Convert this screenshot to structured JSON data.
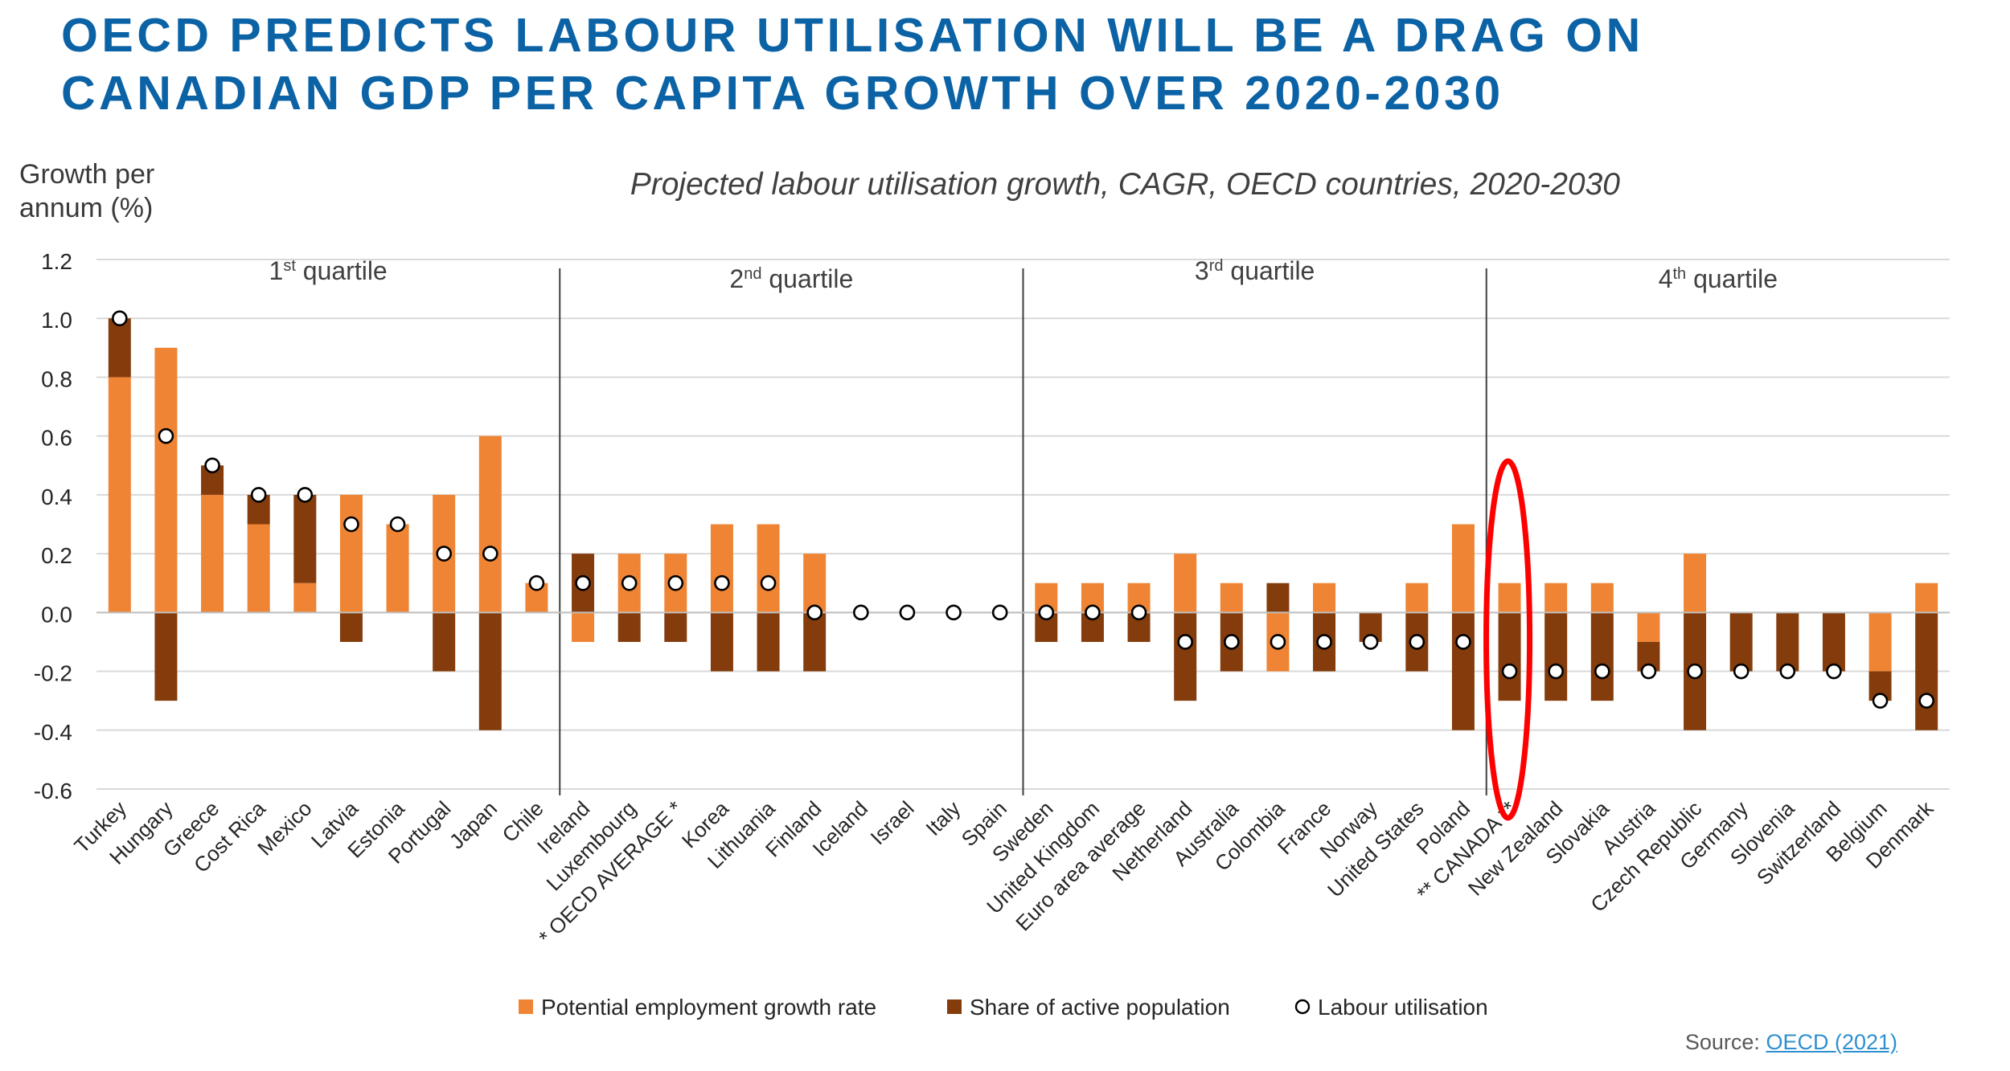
{
  "headline": {
    "line1": "OECD PREDICTS LABOUR UTILISATION WILL BE A DRAG ON",
    "line2": "CANADIAN GDP PER CAPITA GROWTH OVER 2020-2030"
  },
  "colors": {
    "headline": "#0b63a6",
    "potential_employment": "#ee8434",
    "share_active_population": "#843c0c",
    "labour_utilisation_marker": "#ffffff",
    "highlight_ellipse": "#ff0000",
    "gridline": "#d9d9d9",
    "link": "#2f8fcf"
  },
  "source": {
    "prefix": "Source: ",
    "link_text": "OECD (2021)"
  },
  "chart_data": {
    "type": "bar",
    "stacked": true,
    "title": "Projected labour utilisation growth, CAGR, OECD countries, 2020-2030",
    "ylabel_line1": "Growth per",
    "ylabel_line2": "annum (%)",
    "xlabel": "",
    "ylim": [
      -0.6,
      1.2
    ],
    "yticks": [
      "1.2",
      "1.0",
      "0.8",
      "0.6",
      "0.4",
      "0.2",
      "0.0",
      "-0.2",
      "-0.4",
      "-0.6"
    ],
    "grid": "horizontal",
    "categories": [
      "Turkey",
      "Hungary",
      "Greece",
      "Cost Rica",
      "Mexico",
      "Latvia",
      "Estonia",
      "Portugal",
      "Japan",
      "Chile",
      "Ireland",
      "Luxembourg",
      "* OECD AVERAGE *",
      "Korea",
      "Lithuania",
      "Finland",
      "Iceland",
      "Israel",
      "Italy",
      "Spain",
      "Sweden",
      "United Kingdom",
      "Euro area average",
      "Netherland",
      "Australia",
      "Colombia",
      "France",
      "Norway",
      "United States",
      "Poland",
      "** CANADA **",
      "New Zealand",
      "Slovakia",
      "Austria",
      "Czech Republic",
      "Germany",
      "Slovenia",
      "Switzerland",
      "Belgium",
      "Denmark"
    ],
    "series": [
      {
        "name": "Potential employment growth rate",
        "kind": "bar",
        "values": [
          0.8,
          0.9,
          0.4,
          0.3,
          0.1,
          0.4,
          0.3,
          0.4,
          0.6,
          0.1,
          -0.1,
          0.2,
          0.2,
          0.3,
          0.3,
          0.2,
          0.0,
          0.0,
          0.0,
          0.0,
          0.1,
          0.1,
          0.1,
          0.2,
          0.1,
          -0.2,
          0.1,
          0.0,
          0.1,
          0.3,
          0.1,
          0.1,
          0.1,
          -0.1,
          0.2,
          0.0,
          0.0,
          0.0,
          -0.2,
          0.1
        ]
      },
      {
        "name": "Share of active population",
        "kind": "bar",
        "values": [
          0.2,
          -0.3,
          0.1,
          0.1,
          0.3,
          -0.1,
          0.0,
          -0.2,
          -0.4,
          0.0,
          0.2,
          -0.1,
          -0.1,
          -0.2,
          -0.2,
          -0.2,
          0.0,
          0.0,
          0.0,
          0.0,
          -0.1,
          -0.1,
          -0.1,
          -0.3,
          -0.2,
          0.1,
          -0.2,
          -0.1,
          -0.2,
          -0.4,
          -0.3,
          -0.3,
          -0.3,
          -0.1,
          -0.4,
          -0.2,
          -0.2,
          -0.2,
          -0.1,
          -0.4
        ]
      },
      {
        "name": "Labour utilisation",
        "kind": "marker",
        "values": [
          1.0,
          0.6,
          0.5,
          0.4,
          0.4,
          0.3,
          0.3,
          0.2,
          0.2,
          0.1,
          0.1,
          0.1,
          0.1,
          0.1,
          0.1,
          0.0,
          0.0,
          0.0,
          0.0,
          0.0,
          0.0,
          0.0,
          0.0,
          -0.1,
          -0.1,
          -0.1,
          -0.1,
          -0.1,
          -0.1,
          -0.1,
          -0.2,
          -0.2,
          -0.2,
          -0.2,
          -0.2,
          -0.2,
          -0.2,
          -0.2,
          -0.3,
          -0.3
        ]
      }
    ],
    "quartiles": [
      {
        "ordinal": "1",
        "suffix": "st",
        "label": "quartile",
        "first_index": 0,
        "last_index": 9
      },
      {
        "ordinal": "2",
        "suffix": "nd",
        "label": "quartile",
        "first_index": 10,
        "last_index": 19
      },
      {
        "ordinal": "3",
        "suffix": "rd",
        "label": "quartile",
        "first_index": 20,
        "last_index": 29
      },
      {
        "ordinal": "4",
        "suffix": "th",
        "label": "quartile",
        "first_index": 30,
        "last_index": 39
      }
    ],
    "highlight": {
      "category": "** CANADA **",
      "shape": "ellipse"
    },
    "legend": {
      "placement": "bottom",
      "entries": [
        "Potential employment growth rate",
        "Share of active population",
        "Labour utilisation"
      ]
    }
  }
}
